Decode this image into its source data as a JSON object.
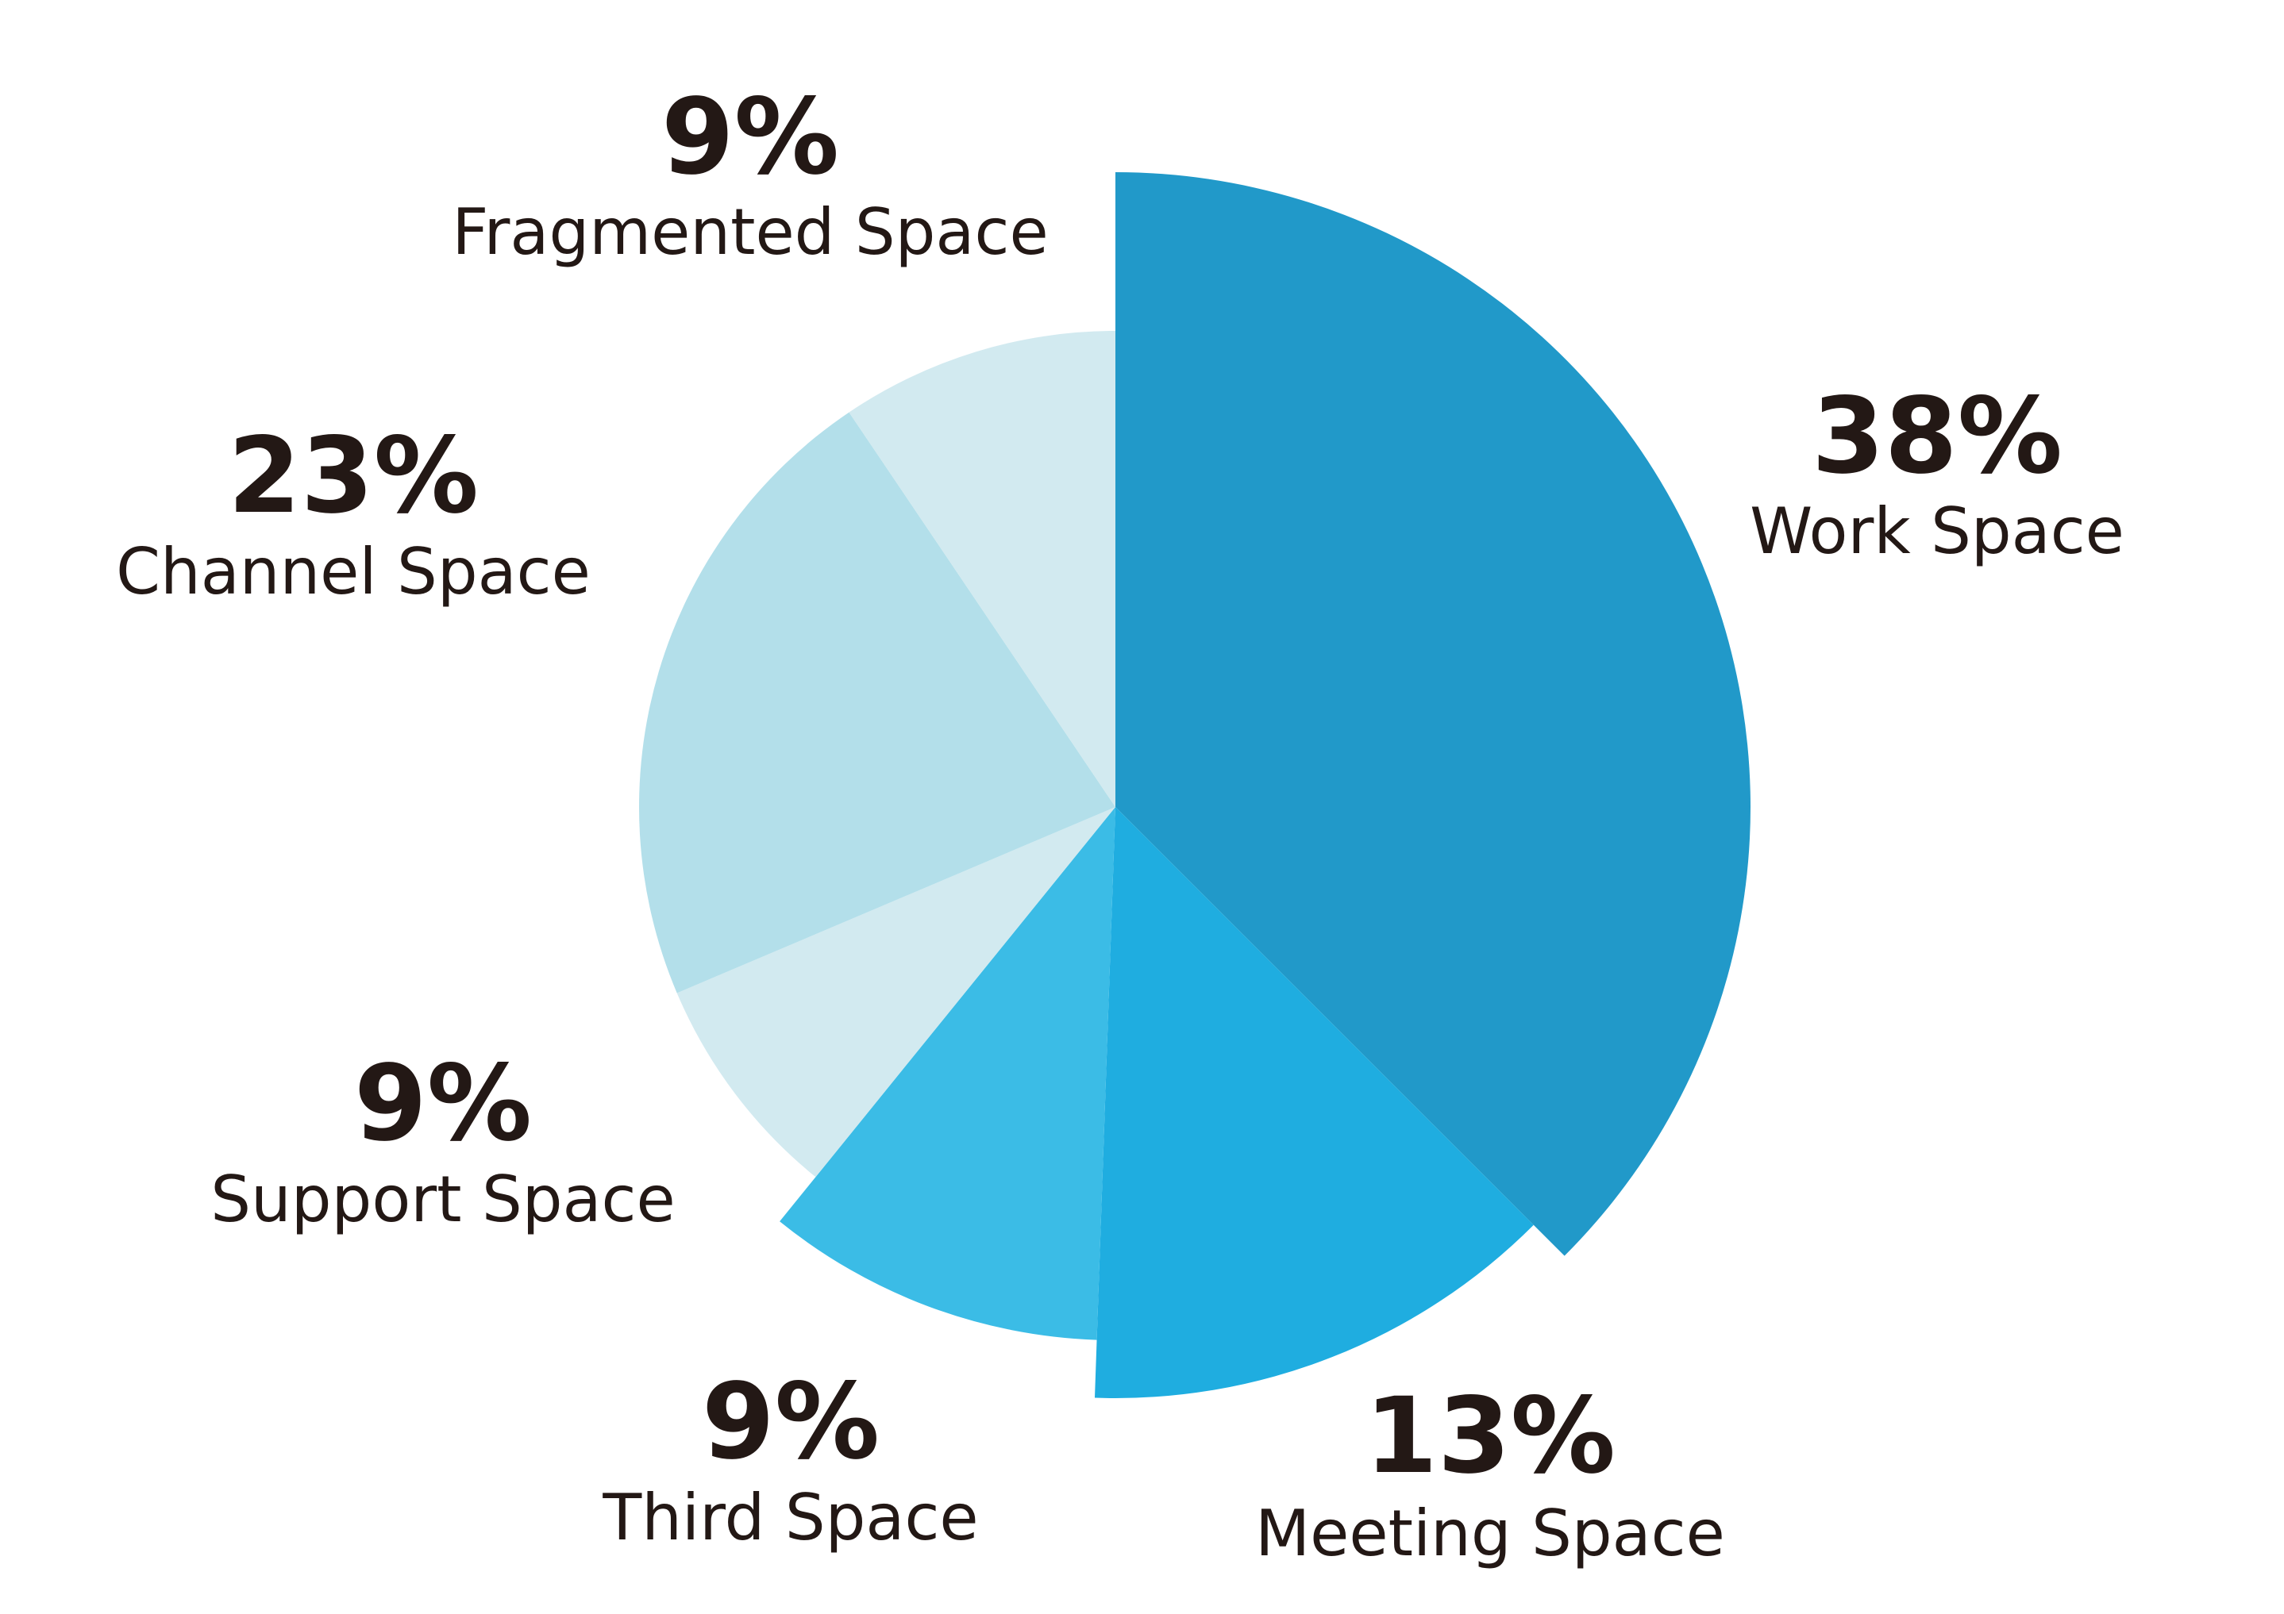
{
  "chart_data": {
    "type": "pie",
    "title": "",
    "slices": [
      {
        "name": "Work Space",
        "value": 38,
        "label": "38%",
        "color": "#2199C9"
      },
      {
        "name": "Meeting Space",
        "value": 13,
        "label": "13%",
        "color": "#1FADE0"
      },
      {
        "name": "Third Space",
        "value": 9,
        "label": "9%",
        "color": "#3BBCE6"
      },
      {
        "name": "Support Space",
        "value": 9,
        "label": "9%",
        "color": "#D2EAF0"
      },
      {
        "name": "Channel Space",
        "value": 23,
        "label": "23%",
        "color": "#B3DFEA"
      },
      {
        "name": "Fragmented Space",
        "value": 9,
        "label": "9%",
        "color": "#D2EAF0"
      }
    ]
  }
}
